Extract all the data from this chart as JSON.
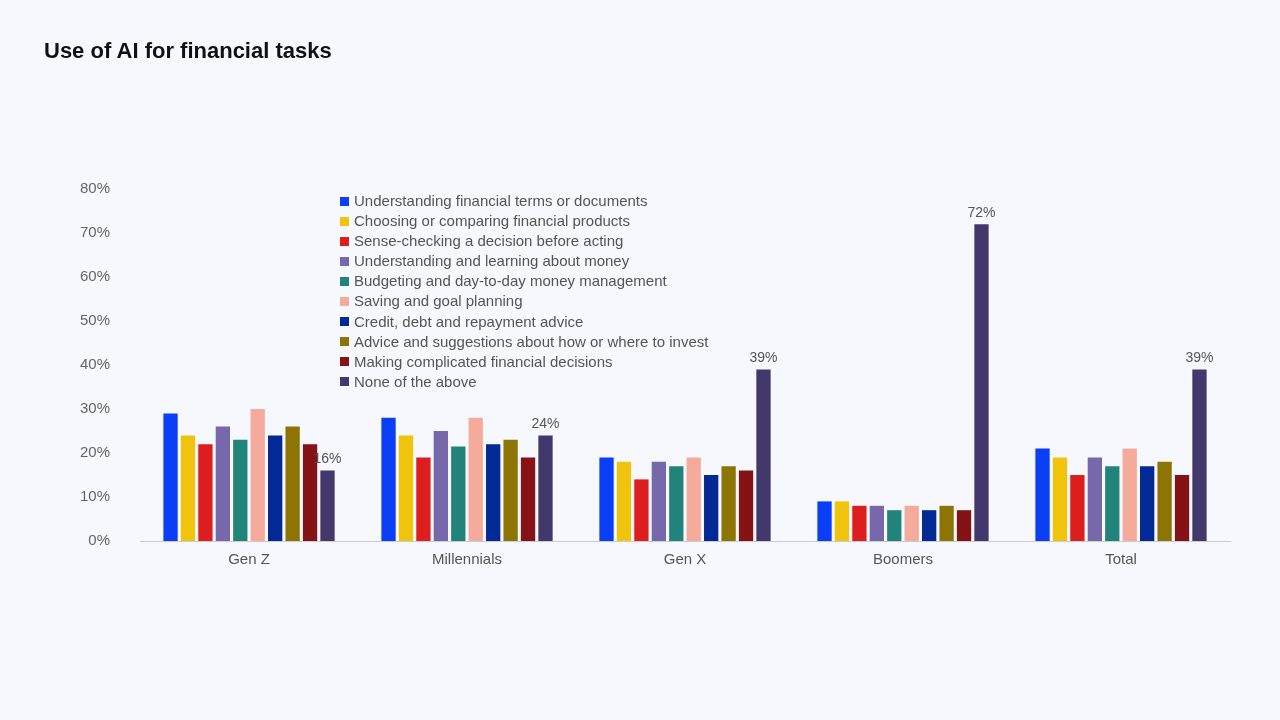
{
  "chart_data": {
    "type": "bar",
    "title": "Use of AI for financial tasks",
    "categories": [
      "Gen Z",
      "Millennials",
      "Gen X",
      "Boomers",
      "Total"
    ],
    "series": [
      {
        "name": "Understanding financial terms or documents",
        "color": "#0a3ff5",
        "values": [
          29,
          28,
          19,
          9,
          21
        ]
      },
      {
        "name": "Choosing or comparing financial products",
        "color": "#f0c40c",
        "values": [
          24,
          24,
          18,
          9,
          19
        ]
      },
      {
        "name": "Sense-checking a decision before acting",
        "color": "#dc1e1e",
        "values": [
          22,
          19,
          14,
          8,
          15
        ]
      },
      {
        "name": "Understanding and learning about money",
        "color": "#7767ab",
        "values": [
          26,
          25,
          18,
          8,
          19
        ]
      },
      {
        "name": "Budgeting and day-to-day money management",
        "color": "#22837a",
        "values": [
          23,
          21.5,
          17,
          7,
          17
        ]
      },
      {
        "name": "Saving and goal planning",
        "color": "#f4ab9b",
        "values": [
          30,
          28,
          19,
          8,
          21
        ]
      },
      {
        "name": "Credit, debt and repayment advice",
        "color": "#032a94",
        "values": [
          24,
          22,
          15,
          7,
          17
        ]
      },
      {
        "name": "Advice and suggestions about how or where to invest",
        "color": "#8c7405",
        "values": [
          26,
          23,
          17,
          8,
          18
        ]
      },
      {
        "name": "Making complicated financial decisions",
        "color": "#851214",
        "values": [
          22,
          19,
          16,
          7,
          15
        ]
      },
      {
        "name": "None of the above",
        "color": "#43386b",
        "values": [
          16,
          24,
          39,
          72,
          39
        ],
        "value_labels": [
          "16%",
          "24%",
          "39%",
          "72%",
          "39%"
        ]
      }
    ],
    "ylim": [
      0,
      80
    ],
    "yticks": [
      {
        "value": 0,
        "label": "0%"
      },
      {
        "value": 10,
        "label": "10%"
      },
      {
        "value": 20,
        "label": "20%"
      },
      {
        "value": 30,
        "label": "30%"
      },
      {
        "value": 40,
        "label": "40%"
      },
      {
        "value": 50,
        "label": "50%"
      },
      {
        "value": 60,
        "label": "60%"
      },
      {
        "value": 70,
        "label": "70%"
      },
      {
        "value": 80,
        "label": "80%"
      }
    ],
    "grid": false,
    "legend": "top left"
  }
}
